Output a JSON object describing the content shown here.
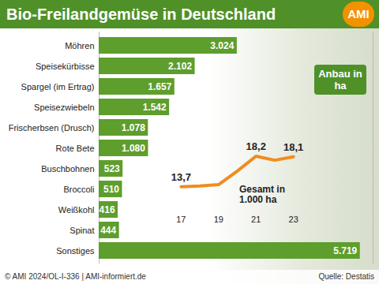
{
  "chart_data": [
    {
      "type": "bar",
      "title": "Bio-Freilandgemüse in Deutschland",
      "orientation": "horizontal",
      "categories": [
        "Möhren",
        "Speisekürbisse",
        "Spargel (im Ertrag)",
        "Speisezwiebeln",
        "Frischerbsen (Drusch)",
        "Rote Bete",
        "Buschbohnen",
        "Broccoli",
        "Weißkohl",
        "Spinat",
        "Sonstiges"
      ],
      "values": [
        3024,
        2102,
        1657,
        1542,
        1078,
        1080,
        523,
        510,
        416,
        444,
        5719
      ],
      "value_labels": [
        "3.024",
        "2.102",
        "1.657",
        "1.542",
        "1.078",
        "1.080",
        "523",
        "510",
        "416",
        "444",
        "5.719"
      ],
      "data_labels": true,
      "color": "#5e9e2c",
      "xlim": [
        0,
        6000
      ],
      "xticks": [],
      "tick_labels": "y",
      "annotations": [
        "Anbau in ha"
      ],
      "logo": "AMI",
      "caption": "© AMI 2024/OL-I-336 | AMI-informiert.de",
      "source": "Quelle: Destatis"
    },
    {
      "type": "line",
      "x": [
        17,
        18,
        19,
        20,
        21,
        22,
        23
      ],
      "values": [
        13.7,
        13.8,
        14.0,
        16.0,
        18.2,
        17.6,
        18.1
      ],
      "value_labels": [
        "13,7",
        null,
        null,
        null,
        "18,2",
        null,
        "18,1"
      ],
      "data_labels": true,
      "color": "#f08c1e",
      "xlim": [
        16.5,
        23.5
      ],
      "xticks": [
        17,
        19,
        21,
        23
      ],
      "ylim": [
        10,
        20
      ],
      "yticks": [],
      "tick_labels": "x",
      "annotations": [
        "Gesamt in 1.000 ha"
      ]
    }
  ]
}
